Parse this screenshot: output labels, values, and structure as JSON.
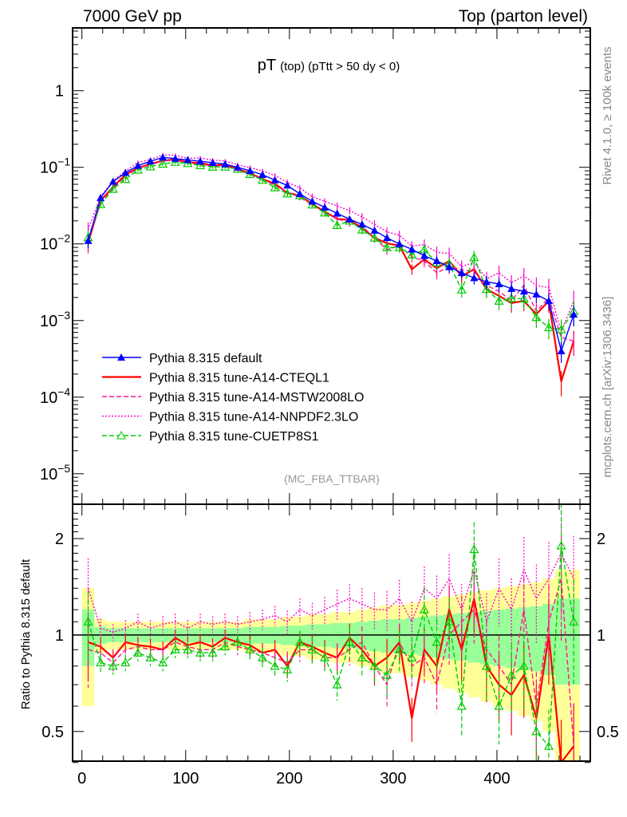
{
  "header": {
    "left": "7000 GeV pp",
    "right": "Top (parton level)"
  },
  "side_labels": {
    "rivet": "Rivet 4.1.0, ≥ 100k events",
    "mcplots": "mcplots.cern.ch [arXiv:1306.3436]"
  },
  "chart_data": {
    "type": "line",
    "title_main": "pT",
    "title_sub": "(top)  (pTtt > 50 dy < 0)",
    "watermark": "(MC_FBA_TTBAR)",
    "xlim": [
      -9,
      490
    ],
    "upper": {
      "yscale": "log",
      "ylim": [
        4e-06,
        6.6
      ],
      "ytick_labels": [
        {
          "v": 1,
          "label": "1"
        },
        {
          "v": 0.1,
          "label": "10",
          "exp": "−1"
        },
        {
          "v": 0.01,
          "label": "10",
          "exp": "−2"
        },
        {
          "v": 0.001,
          "label": "10",
          "exp": "−3"
        },
        {
          "v": 0.0001,
          "label": "10",
          "exp": "−4"
        },
        {
          "v": 1e-05,
          "label": "10",
          "exp": "−5"
        }
      ]
    },
    "ratio": {
      "ylabel": "Ratio to Pythia 8.315 default",
      "yscale": "log",
      "ylim": [
        0.404,
        2.56
      ],
      "ytick_labels": [
        {
          "v": 0.5,
          "label": "0.5"
        },
        {
          "v": 1,
          "label": "1"
        },
        {
          "v": 2,
          "label": "2"
        }
      ]
    },
    "xtick_labels": [
      "0",
      "100",
      "200",
      "300",
      "400"
    ],
    "xticks": [
      0,
      100,
      200,
      300,
      400
    ],
    "bin_width": 12,
    "x": [
      6,
      18,
      30,
      42,
      54,
      66,
      78,
      90,
      102,
      114,
      126,
      138,
      150,
      162,
      174,
      186,
      198,
      210,
      222,
      234,
      246,
      258,
      270,
      282,
      294,
      306,
      318,
      330,
      342,
      354,
      366,
      378,
      390,
      402,
      414,
      426,
      438,
      450,
      462,
      474
    ],
    "default_values": [
      0.011,
      0.04,
      0.065,
      0.085,
      0.105,
      0.12,
      0.135,
      0.13,
      0.125,
      0.12,
      0.115,
      0.11,
      0.1,
      0.09,
      0.08,
      0.068,
      0.058,
      0.045,
      0.036,
      0.03,
      0.025,
      0.021,
      0.018,
      0.015,
      0.012,
      0.01,
      0.0085,
      0.007,
      0.006,
      0.005,
      0.0042,
      0.0036,
      0.0032,
      0.003,
      0.0026,
      0.0024,
      0.0022,
      0.0018,
      0.0004,
      0.0012
    ],
    "band_rel_err": [
      0.2,
      0.06,
      0.05,
      0.05,
      0.05,
      0.05,
      0.05,
      0.05,
      0.05,
      0.05,
      0.05,
      0.05,
      0.05,
      0.06,
      0.06,
      0.06,
      0.07,
      0.07,
      0.08,
      0.08,
      0.09,
      0.09,
      0.1,
      0.11,
      0.12,
      0.12,
      0.13,
      0.14,
      0.15,
      0.16,
      0.17,
      0.18,
      0.19,
      0.2,
      0.21,
      0.22,
      0.23,
      0.25,
      0.3,
      0.3
    ],
    "band_colors": {
      "one_sigma": "#99ff99",
      "two_sigma": "#ffff99"
    },
    "series": [
      {
        "name": "Pythia 8.315 default",
        "color": "#0000ff",
        "style": "solid",
        "marker": "triangle-filled",
        "ratio": [
          1,
          1,
          1,
          1,
          1,
          1,
          1,
          1,
          1,
          1,
          1,
          1,
          1,
          1,
          1,
          1,
          1,
          1,
          1,
          1,
          1,
          1,
          1,
          1,
          1,
          1,
          1,
          1,
          1,
          1,
          1,
          1,
          1,
          1,
          1,
          1,
          1,
          1,
          1,
          1
        ]
      },
      {
        "name": "Pythia 8.315 tune-A14-CTEQL1",
        "color": "#ff0000",
        "style": "solid",
        "marker": "none",
        "ratio": [
          0.95,
          0.92,
          0.85,
          0.95,
          0.93,
          0.92,
          0.9,
          0.98,
          0.93,
          0.95,
          0.92,
          0.98,
          0.95,
          0.93,
          0.88,
          0.9,
          0.8,
          0.95,
          0.92,
          0.88,
          0.85,
          0.98,
          0.9,
          0.8,
          0.85,
          0.95,
          0.55,
          0.9,
          0.8,
          1.2,
          0.9,
          1.3,
          0.8,
          0.7,
          0.65,
          0.75,
          0.55,
          1.0,
          0.4,
          0.45
        ]
      },
      {
        "name": "Pythia 8.315 tune-A14-MSTW2008LO",
        "color": "#ff1493",
        "style": "dashed",
        "marker": "none",
        "ratio": [
          0.9,
          0.88,
          0.82,
          0.9,
          0.92,
          0.9,
          0.9,
          0.95,
          0.92,
          0.9,
          0.9,
          0.95,
          0.92,
          0.9,
          0.88,
          0.85,
          0.82,
          0.9,
          0.9,
          0.85,
          0.85,
          0.9,
          0.95,
          0.8,
          0.7,
          0.95,
          0.8,
          0.85,
          0.7,
          1.0,
          1.1,
          1.2,
          0.9,
          0.8,
          0.7,
          1.2,
          0.6,
          1.1,
          1.5,
          0.45
        ]
      },
      {
        "name": "Pythia 8.315 tune-A14-NNPDF2.3LO",
        "color": "#ff00cc",
        "style": "dotted",
        "marker": "none",
        "ratio": [
          1.4,
          1.05,
          1.02,
          1.05,
          1.1,
          1.05,
          1.08,
          1.1,
          1.05,
          1.1,
          1.08,
          1.1,
          1.08,
          1.1,
          1.12,
          1.15,
          1.1,
          1.2,
          1.15,
          1.2,
          1.25,
          1.3,
          1.25,
          1.2,
          1.2,
          1.3,
          1.1,
          1.4,
          1.3,
          1.5,
          1.2,
          1.6,
          1.1,
          1.4,
          1.2,
          1.6,
          1.3,
          1.5,
          1.8,
          1.5
        ]
      },
      {
        "name": "Pythia 8.315 tune-CUETP8S1",
        "color": "#00cc00",
        "style": "dashed",
        "marker": "triangle-open",
        "ratio": [
          1.1,
          0.82,
          0.8,
          0.82,
          0.88,
          0.85,
          0.82,
          0.9,
          0.9,
          0.88,
          0.88,
          0.92,
          0.95,
          0.9,
          0.85,
          0.8,
          0.78,
          0.95,
          0.9,
          0.85,
          0.7,
          0.95,
          0.85,
          0.8,
          0.75,
          0.9,
          0.85,
          1.2,
          0.95,
          1.1,
          0.6,
          1.85,
          0.8,
          0.6,
          0.75,
          0.8,
          0.5,
          0.45,
          1.9,
          1.1
        ]
      }
    ],
    "legend_position": "lower-left"
  }
}
